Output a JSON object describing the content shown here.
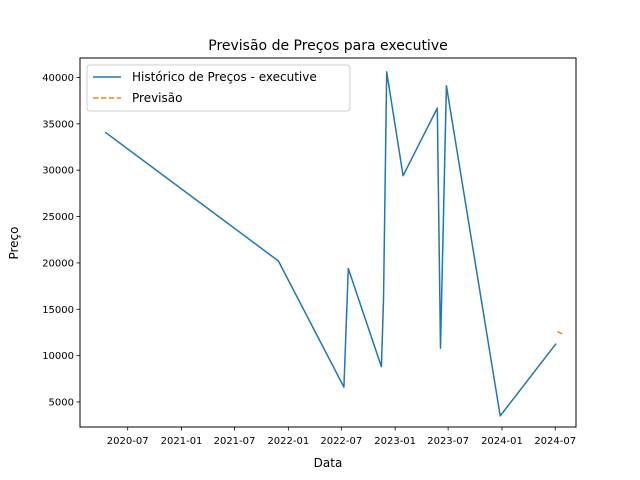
{
  "chart_data": {
    "type": "line",
    "title": "Previsão de Preços para executive",
    "xlabel": "Data",
    "ylabel": "Preço",
    "xlim": [
      "2020-01-20",
      "2024-09-10"
    ],
    "ylim": [
      2300,
      42100
    ],
    "x_ticks": [
      {
        "date": "2020-07-01",
        "label": "2020-07"
      },
      {
        "date": "2021-01-01",
        "label": "2021-01"
      },
      {
        "date": "2021-07-01",
        "label": "2021-07"
      },
      {
        "date": "2022-01-01",
        "label": "2022-01"
      },
      {
        "date": "2022-07-01",
        "label": "2022-07"
      },
      {
        "date": "2023-01-01",
        "label": "2023-01"
      },
      {
        "date": "2023-07-01",
        "label": "2023-07"
      },
      {
        "date": "2024-01-01",
        "label": "2024-01"
      },
      {
        "date": "2024-07-01",
        "label": "2024-07"
      }
    ],
    "y_ticks": [
      5000,
      10000,
      15000,
      20000,
      25000,
      30000,
      35000,
      40000
    ],
    "legend": {
      "position": "upper-left"
    },
    "grid": false,
    "series": [
      {
        "name": "Histórico de Preços - executive",
        "color": "#1f77b4",
        "style": "solid",
        "points": [
          {
            "x": "2020-04-15",
            "y": 34100
          },
          {
            "x": "2021-11-28",
            "y": 20200
          },
          {
            "x": "2022-07-10",
            "y": 6600
          },
          {
            "x": "2022-07-25",
            "y": 19400
          },
          {
            "x": "2022-11-15",
            "y": 8800
          },
          {
            "x": "2022-11-22",
            "y": 16000
          },
          {
            "x": "2022-12-03",
            "y": 40600
          },
          {
            "x": "2023-01-28",
            "y": 29400
          },
          {
            "x": "2023-05-25",
            "y": 36700
          },
          {
            "x": "2023-06-05",
            "y": 10800
          },
          {
            "x": "2023-06-25",
            "y": 39100
          },
          {
            "x": "2023-12-26",
            "y": 3500
          },
          {
            "x": "2024-07-04",
            "y": 11300
          }
        ]
      },
      {
        "name": "Previsão",
        "color": "#ff7f0e",
        "style": "dashed",
        "points": [
          {
            "x": "2024-07-08",
            "y": 12600
          },
          {
            "x": "2024-07-28",
            "y": 12300
          }
        ]
      }
    ]
  }
}
